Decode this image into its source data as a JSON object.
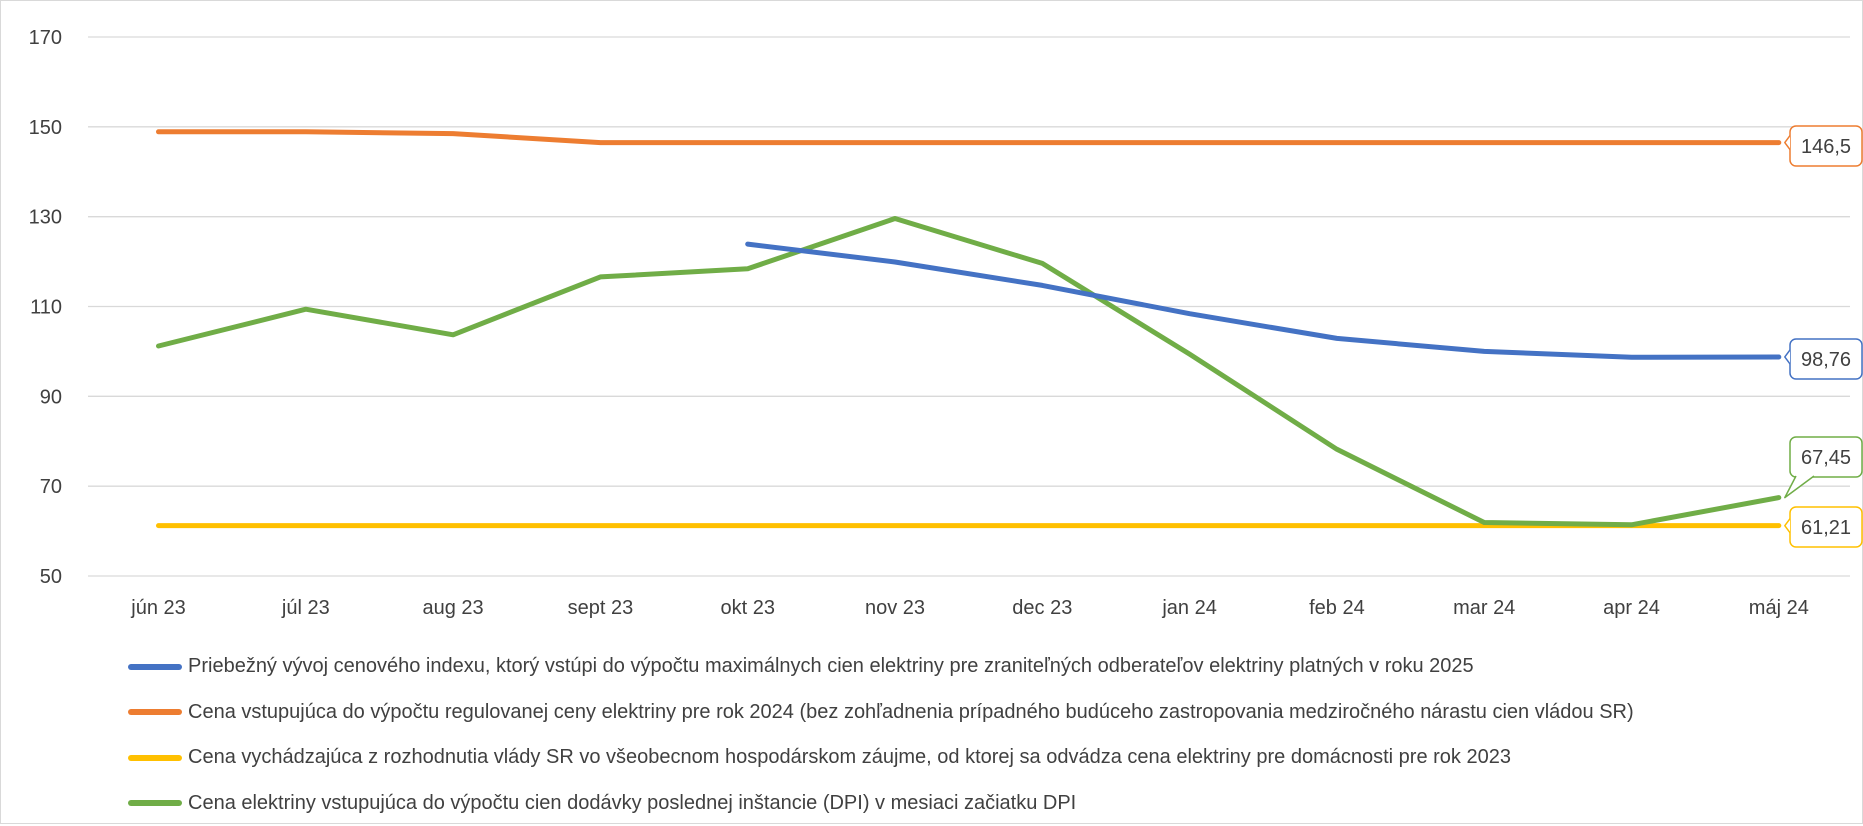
{
  "chart_data": {
    "type": "line",
    "categories": [
      "jún 23",
      "júl 23",
      "aug 23",
      "sept 23",
      "okt 23",
      "nov 23",
      "dec 23",
      "jan 24",
      "feb 24",
      "mar 24",
      "apr 24",
      "máj 24"
    ],
    "ylim": [
      50,
      170
    ],
    "yticks": [
      "50",
      "70",
      "90",
      "110",
      "130",
      "150",
      "170"
    ],
    "grid": true,
    "legend_position": "bottom",
    "series": [
      {
        "name": "Priebežný vývoj cenového indexu, ktorý vstúpi do výpočtu maximálnych cien elektriny pre zraniteľných odberateľov elektriny platných v roku 2025",
        "color": "#4472c4",
        "values": [
          null,
          null,
          null,
          null,
          123.9,
          119.9,
          114.7,
          108.4,
          102.9,
          100.0,
          98.7,
          98.76
        ],
        "end_label": "98,76"
      },
      {
        "name": "Cena vstupujúca do výpočtu regulovanej ceny elektriny pre rok 2024 (bez zohľadnenia prípadného budúceho zastropovania medziročného nárastu cien vládou SR)",
        "color": "#ed7d31",
        "values": [
          148.9,
          148.9,
          148.5,
          146.5,
          146.5,
          146.5,
          146.5,
          146.5,
          146.5,
          146.5,
          146.5,
          146.5
        ],
        "end_label": "146,5"
      },
      {
        "name": "Cena vychádzajúca z rozhodnutia vlády SR vo všeobecnom hospodárskom záujme, od ktorej sa odvádza cena elektriny pre domácnosti pre rok 2023",
        "color": "#ffc000",
        "values": [
          61.21,
          61.21,
          61.21,
          61.21,
          61.21,
          61.21,
          61.21,
          61.21,
          61.21,
          61.21,
          61.21,
          61.21
        ],
        "end_label": "61,21"
      },
      {
        "name": "Cena elektriny vstupujúca do výpočtu cien dodávky poslednej inštancie (DPI) v mesiaci začiatku DPI",
        "color": "#70ad47",
        "values": [
          101.2,
          109.4,
          103.7,
          116.6,
          118.4,
          129.6,
          119.6,
          99.4,
          78.2,
          61.9,
          61.4,
          67.45
        ],
        "end_label": "67,45"
      }
    ]
  }
}
